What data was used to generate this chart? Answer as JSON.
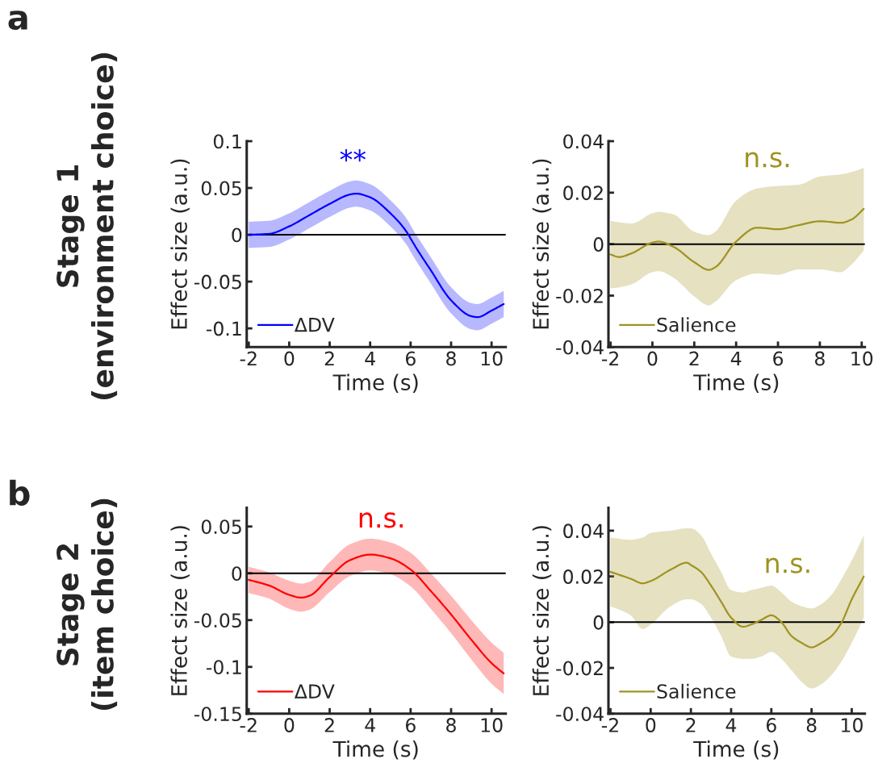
{
  "chart_data": [
    {
      "type": "line",
      "xlabel": "Time (s)",
      "ylabel": "Effect size (a.u.)",
      "xlim": [
        -2.1,
        10.7
      ],
      "ylim": [
        -0.12,
        0.1
      ],
      "xticks": [
        -2,
        0,
        2,
        4,
        6,
        8,
        10
      ],
      "yticks": [
        -0.1,
        -0.05,
        0,
        0.05,
        0.1
      ],
      "legend": "bottom left",
      "grid": false,
      "ref_lines": [
        {
          "axis": "y",
          "value": 0,
          "color": "#000000"
        }
      ],
      "annotations": [
        "a",
        "Stage 1\n(environment choice)",
        "**"
      ],
      "series": [
        {
          "name": "ΔDV",
          "color": "#0000ff",
          "x": [
            -2,
            -1,
            0,
            1,
            2,
            3,
            3.3,
            4,
            5,
            5.9,
            6,
            7,
            8,
            9,
            9.3,
            10,
            10.6
          ],
          "values": [
            0,
            0.001,
            0.009,
            0.021,
            0.033,
            0.043,
            0.044,
            0.04,
            0.023,
            0,
            -0.004,
            -0.038,
            -0.07,
            -0.087,
            -0.088,
            -0.081,
            -0.074
          ],
          "upper": [
            0.014,
            0.015,
            0.023,
            0.035,
            0.047,
            0.057,
            0.058,
            0.054,
            0.037,
            0.014,
            0.01,
            -0.024,
            -0.056,
            -0.073,
            -0.074,
            -0.067,
            -0.06
          ],
          "lower": [
            -0.014,
            -0.013,
            -0.005,
            0.007,
            0.019,
            0.029,
            0.03,
            0.026,
            0.009,
            -0.014,
            -0.018,
            -0.052,
            -0.084,
            -0.101,
            -0.102,
            -0.095,
            -0.088
          ]
        }
      ]
    },
    {
      "type": "line",
      "xlabel": "Time (s)",
      "ylabel": "Effect size (a.u.)",
      "xlim": [
        -2.1,
        10.15
      ],
      "ylim": [
        -0.04,
        0.04
      ],
      "xticks": [
        -2,
        0,
        2,
        4,
        6,
        8,
        10
      ],
      "yticks": [
        -0.04,
        -0.02,
        0,
        0.02,
        0.04
      ],
      "legend": "bottom left",
      "grid": false,
      "ref_lines": [
        {
          "axis": "y",
          "value": 0,
          "color": "#000000"
        }
      ],
      "annotations": [
        "n.s."
      ],
      "series": [
        {
          "name": "Salience",
          "color": "#a09320",
          "x": [
            -2,
            -1.6,
            -1,
            0,
            0.3,
            1,
            2,
            2.7,
            3,
            4,
            5,
            6,
            7,
            8,
            9,
            9.5,
            10.1
          ],
          "values": [
            -0.004,
            -0.005,
            -0.0036,
            0.0006,
            0.001,
            -0.001,
            -0.007,
            -0.01,
            -0.009,
            0.001,
            0.0064,
            0.0058,
            0.0074,
            0.0089,
            0.0083,
            0.0095,
            0.0137
          ],
          "upper": [
            0.009,
            0.0085,
            0.008,
            0.012,
            0.0125,
            0.0116,
            0.0048,
            0.0035,
            0.0048,
            0.0169,
            0.0216,
            0.0226,
            0.0231,
            0.0263,
            0.0271,
            0.028,
            0.0296
          ],
          "lower": [
            -0.0172,
            -0.0168,
            -0.0156,
            -0.0109,
            -0.0105,
            -0.013,
            -0.0203,
            -0.0238,
            -0.0224,
            -0.014,
            -0.0114,
            -0.0119,
            -0.0098,
            -0.0098,
            -0.0109,
            -0.008,
            -0.0025
          ]
        }
      ]
    },
    {
      "type": "line",
      "xlabel": "Time (s)",
      "ylabel": "Effect size (a.u.)",
      "xlim": [
        -2.1,
        10.7
      ],
      "ylim": [
        -0.15,
        0.07
      ],
      "xticks": [
        -2,
        0,
        2,
        4,
        6,
        8,
        10
      ],
      "yticks": [
        -0.15,
        -0.1,
        -0.05,
        0,
        0.05
      ],
      "legend": "bottom left",
      "grid": false,
      "ref_lines": [
        {
          "axis": "y",
          "value": 0,
          "color": "#000000"
        }
      ],
      "annotations": [
        "b",
        "Stage 2\n(item choice)",
        "n.s."
      ],
      "series": [
        {
          "name": "ΔDV",
          "color": "#ff0000",
          "x": [
            -2,
            -1,
            0,
            0.6,
            1,
            2,
            3,
            4,
            5,
            6,
            7,
            8,
            9,
            10,
            10.6
          ],
          "values": [
            -0.007,
            -0.013,
            -0.023,
            -0.026,
            -0.024,
            -0.004,
            0.014,
            0.02,
            0.016,
            0.004,
            -0.019,
            -0.044,
            -0.071,
            -0.096,
            -0.107
          ],
          "upper": [
            0.007,
            0.001,
            -0.008,
            -0.011,
            -0.009,
            0.012,
            0.031,
            0.037,
            0.033,
            0.022,
            0,
            -0.024,
            -0.05,
            -0.074,
            -0.085
          ],
          "lower": [
            -0.021,
            -0.027,
            -0.038,
            -0.041,
            -0.039,
            -0.02,
            -0.003,
            0.003,
            -0.001,
            -0.014,
            -0.038,
            -0.064,
            -0.092,
            -0.118,
            -0.129
          ]
        }
      ]
    },
    {
      "type": "line",
      "xlabel": "Time (s)",
      "ylabel": "Effect size (a.u.)",
      "xlim": [
        -2.1,
        10.65
      ],
      "ylim": [
        -0.04,
        0.05
      ],
      "xticks": [
        -2,
        0,
        2,
        4,
        6,
        8,
        10
      ],
      "yticks": [
        -0.04,
        -0.02,
        0,
        0.02,
        0.04
      ],
      "legend": "bottom left",
      "grid": false,
      "ref_lines": [
        {
          "axis": "y",
          "value": 0,
          "color": "#000000"
        }
      ],
      "annotations": [
        "n.s."
      ],
      "series": [
        {
          "name": "Salience",
          "color": "#a09320",
          "x": [
            -2,
            -1,
            -0.4,
            0,
            1,
            1.8,
            2,
            2.5,
            3,
            3.5,
            4,
            4.6,
            5,
            5.5,
            6,
            6.5,
            7,
            7.5,
            8,
            8.5,
            9,
            9.5,
            10,
            10.6
          ],
          "values": [
            0.022,
            0.019,
            0.017,
            0.018,
            0.023,
            0.026,
            0.025,
            0.022,
            0.016,
            0.009,
            0.002,
            -0.002,
            -0.001,
            0.001,
            0.003,
            0,
            -0.006,
            -0.009,
            -0.011,
            -0.009,
            -0.006,
            0,
            0.01,
            0.02
          ],
          "upper": [
            0.037,
            0.036,
            0.037,
            0.039,
            0.04,
            0.041,
            0.041,
            0.038,
            0.03,
            0.022,
            0.014,
            0.013,
            0.014,
            0.015,
            0.016,
            0.013,
            0.009,
            0.007,
            0.006,
            0.008,
            0.012,
            0.019,
            0.027,
            0.038
          ],
          "lower": [
            0.007,
            0.003,
            -0.003,
            -0.001,
            0.007,
            0.01,
            0.01,
            0.008,
            0.002,
            -0.006,
            -0.015,
            -0.016,
            -0.016,
            -0.015,
            -0.013,
            -0.016,
            -0.021,
            -0.026,
            -0.029,
            -0.027,
            -0.023,
            -0.017,
            -0.009,
            0.002
          ]
        }
      ]
    }
  ]
}
